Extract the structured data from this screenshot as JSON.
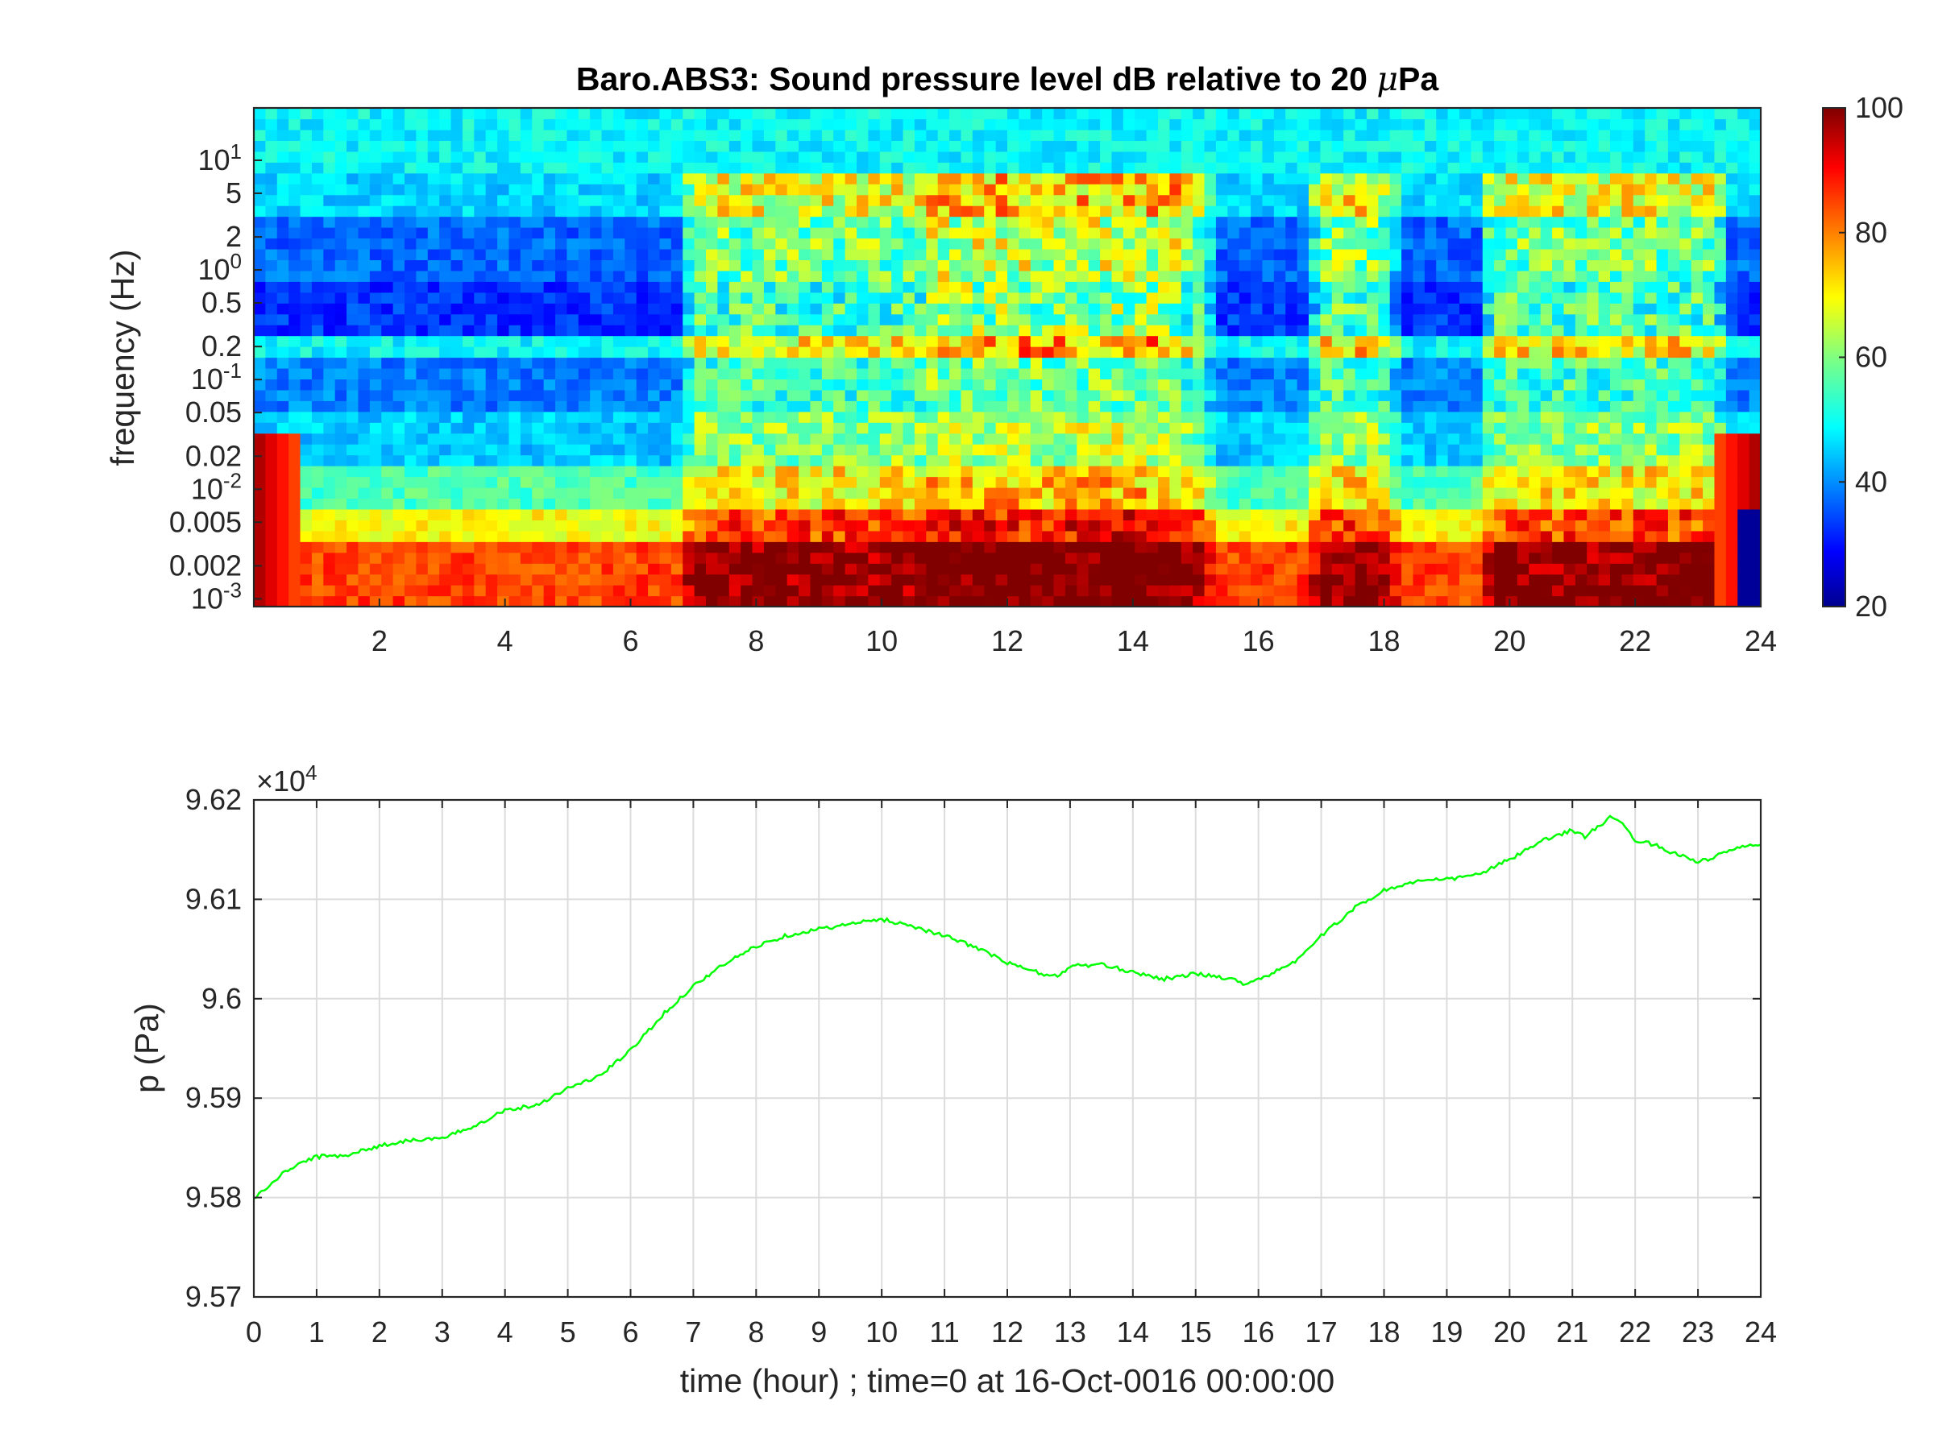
{
  "chart_data": [
    {
      "type": "heatmap",
      "title_main": "Baro.ABS3: Sound pressure level dB relative to 20 ",
      "title_mu": "μ",
      "title_unit": "Pa",
      "ylabel": "frequency (Hz)",
      "xlabel": "",
      "yscale": "log",
      "ylim": [
        0.00085,
        30
      ],
      "xlim": [
        0,
        24
      ],
      "x_ticks": [
        "2",
        "4",
        "6",
        "8",
        "10",
        "12",
        "14",
        "16",
        "18",
        "20",
        "22",
        "24"
      ],
      "x_tick_values": [
        2,
        4,
        6,
        8,
        10,
        12,
        14,
        16,
        18,
        20,
        22,
        24
      ],
      "y_ticks": [
        {
          "value": 10,
          "base": "10",
          "exp": "1"
        },
        {
          "value": 5,
          "label": "5"
        },
        {
          "value": 2,
          "label": "2"
        },
        {
          "value": 1,
          "base": "10",
          "exp": "0"
        },
        {
          "value": 0.5,
          "label": "0.5"
        },
        {
          "value": 0.2,
          "label": "0.2"
        },
        {
          "value": 0.1,
          "base": "10",
          "exp": "-1"
        },
        {
          "value": 0.05,
          "label": "0.05"
        },
        {
          "value": 0.02,
          "label": "0.02"
        },
        {
          "value": 0.01,
          "base": "10",
          "exp": "-2"
        },
        {
          "value": 0.005,
          "label": "0.005"
        },
        {
          "value": 0.002,
          "label": "0.002"
        },
        {
          "value": 0.001,
          "base": "10",
          "exp": "-3"
        }
      ],
      "colorbar": {
        "colormap": "jet",
        "range": [
          20,
          100
        ],
        "ticks": [
          "20",
          "40",
          "60",
          "80",
          "100"
        ],
        "tick_values": [
          20,
          40,
          60,
          80,
          100
        ]
      },
      "active_hours": [
        {
          "start": 6.8,
          "end": 15.3,
          "level_db": 72
        },
        {
          "start": 10.5,
          "end": 15.0,
          "level_db": 80
        },
        {
          "start": 16.8,
          "end": 18.2,
          "level_db": 74
        },
        {
          "start": 19.5,
          "end": 23.5,
          "level_db": 72
        }
      ]
    },
    {
      "type": "line",
      "title": "",
      "xlabel": "time (hour) ; time=0 at 16-Oct-0016 00:00:00",
      "ylabel": "p (Pa)",
      "exponent_base": "×10",
      "exponent_power": "4",
      "xlim": [
        0,
        24
      ],
      "ylim": [
        9.57,
        9.62
      ],
      "grid": true,
      "x_ticks": [
        "0",
        "1",
        "2",
        "3",
        "4",
        "5",
        "6",
        "7",
        "8",
        "9",
        "10",
        "11",
        "12",
        "13",
        "14",
        "15",
        "16",
        "17",
        "18",
        "19",
        "20",
        "21",
        "22",
        "23",
        "24"
      ],
      "x_tick_values": [
        0,
        1,
        2,
        3,
        4,
        5,
        6,
        7,
        8,
        9,
        10,
        11,
        12,
        13,
        14,
        15,
        16,
        17,
        18,
        19,
        20,
        21,
        22,
        23,
        24
      ],
      "y_ticks": [
        "9.57",
        "9.58",
        "9.59",
        "9.6",
        "9.61",
        "9.62"
      ],
      "y_tick_values": [
        9.57,
        9.58,
        9.59,
        9.6,
        9.61,
        9.62
      ],
      "series": [
        {
          "color": "#00ff00",
          "x": [
            0,
            0.25,
            0.5,
            0.75,
            1,
            1.5,
            2,
            2.5,
            3,
            3.5,
            4,
            4.5,
            5,
            5.5,
            6,
            6.5,
            7,
            7.5,
            8,
            8.5,
            9,
            9.5,
            10,
            10.5,
            11,
            11.5,
            12,
            12.5,
            12.8,
            13,
            13.5,
            14,
            14.5,
            15,
            15.5,
            15.8,
            16,
            16.5,
            17,
            17.5,
            18,
            18.5,
            19,
            19.5,
            20,
            20.5,
            21,
            21.2,
            21.6,
            21.8,
            22,
            22.3,
            22.6,
            23,
            23.2,
            23.5,
            24
          ],
          "y": [
            9.5799,
            9.5812,
            9.5826,
            9.5835,
            9.5841,
            9.5843,
            9.5852,
            9.5858,
            9.5859,
            9.5872,
            9.5888,
            9.5893,
            9.591,
            9.5922,
            9.5948,
            9.5983,
            9.6013,
            9.6035,
            9.6053,
            9.6064,
            9.607,
            9.6075,
            9.608,
            9.6073,
            9.6063,
            9.6052,
            9.6036,
            9.6026,
            9.6022,
            9.6033,
            9.6034,
            9.6027,
            9.602,
            9.6025,
            9.6021,
            9.6015,
            9.602,
            9.6033,
            9.6063,
            9.609,
            9.6109,
            9.6118,
            9.612,
            9.6125,
            9.614,
            9.6158,
            9.617,
            9.6163,
            9.6182,
            9.6175,
            9.616,
            9.6155,
            9.6147,
            9.6138,
            9.614,
            9.615,
            9.6155
          ]
        }
      ]
    }
  ]
}
